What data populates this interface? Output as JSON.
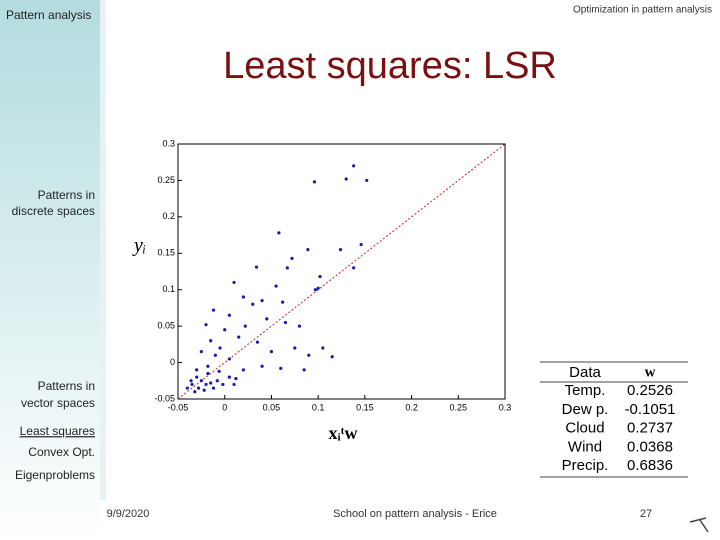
{
  "header": {
    "left": "Pattern analysis",
    "right": "Optimization in pattern analysis",
    "title": "Least squares: LSR"
  },
  "sidebar": [
    "Patterns in discrete spaces",
    "Patterns in vector spaces",
    "Least squares",
    "Convex Opt.",
    "Eigenproblems"
  ],
  "chart_data": {
    "type": "scatter",
    "xlabel": "xᵢᵗw",
    "ylabel": "yᵢ",
    "color": "#1a1aa8",
    "reference_color": "#cc2222",
    "xlim": [
      -0.05,
      0.3
    ],
    "ylim": [
      -0.05,
      0.3
    ],
    "xticks": [
      -0.05,
      0,
      0.05,
      0.1,
      0.15,
      0.2,
      0.25,
      0.3
    ],
    "yticks": [
      -0.05,
      0,
      0.05,
      0.1,
      0.15,
      0.2,
      0.25,
      0.3
    ],
    "x": [
      0.138,
      0.152,
      0.13,
      0.096,
      0.058,
      0.146,
      0.124,
      0.138,
      0.089,
      0.072,
      0.034,
      0.102,
      0.1,
      0.097,
      0.067,
      0.01,
      0.055,
      0.02,
      0.04,
      0.062,
      -0.012,
      0.005,
      0.03,
      0.045,
      0.065,
      0.08,
      0.022,
      0.0,
      -0.02,
      -0.015,
      -0.005,
      0.015,
      0.035,
      0.05,
      0.075,
      0.09,
      0.105,
      0.115,
      0.085,
      0.06,
      0.04,
      0.02,
      0.005,
      -0.01,
      -0.025,
      -0.018,
      -0.03,
      -0.025,
      -0.02,
      -0.015,
      -0.035,
      -0.028,
      -0.032,
      -0.022,
      -0.012,
      -0.008,
      -0.002,
      0.005,
      0.01,
      -0.036,
      -0.03,
      -0.04,
      -0.018,
      -0.006,
      0.012
    ],
    "y": [
      0.27,
      0.25,
      0.252,
      0.248,
      0.178,
      0.162,
      0.155,
      0.13,
      0.155,
      0.143,
      0.131,
      0.118,
      0.102,
      0.1,
      0.13,
      0.11,
      0.105,
      0.09,
      0.085,
      0.083,
      0.072,
      0.065,
      0.08,
      0.06,
      0.055,
      0.05,
      0.05,
      0.045,
      0.052,
      0.03,
      0.02,
      0.035,
      0.028,
      0.015,
      0.02,
      0.01,
      0.02,
      0.008,
      -0.01,
      -0.008,
      -0.005,
      -0.01,
      0.005,
      0.01,
      0.015,
      -0.005,
      -0.02,
      -0.025,
      -0.03,
      -0.028,
      -0.03,
      -0.035,
      -0.04,
      -0.038,
      -0.035,
      -0.025,
      -0.03,
      -0.02,
      -0.03,
      -0.025,
      -0.01,
      -0.035,
      -0.015,
      -0.012,
      -0.022
    ]
  },
  "table": {
    "header": [
      "Data",
      "w"
    ],
    "rows": [
      [
        "Temp.",
        0.2526
      ],
      [
        "Dew p.",
        -0.1051
      ],
      [
        "Cloud",
        0.2737
      ],
      [
        "Wind",
        0.0368
      ],
      [
        "Precip.",
        0.6836
      ]
    ]
  },
  "footer": {
    "date": "9/9/2020",
    "center": "School on pattern analysis - Erice",
    "page": 27
  }
}
